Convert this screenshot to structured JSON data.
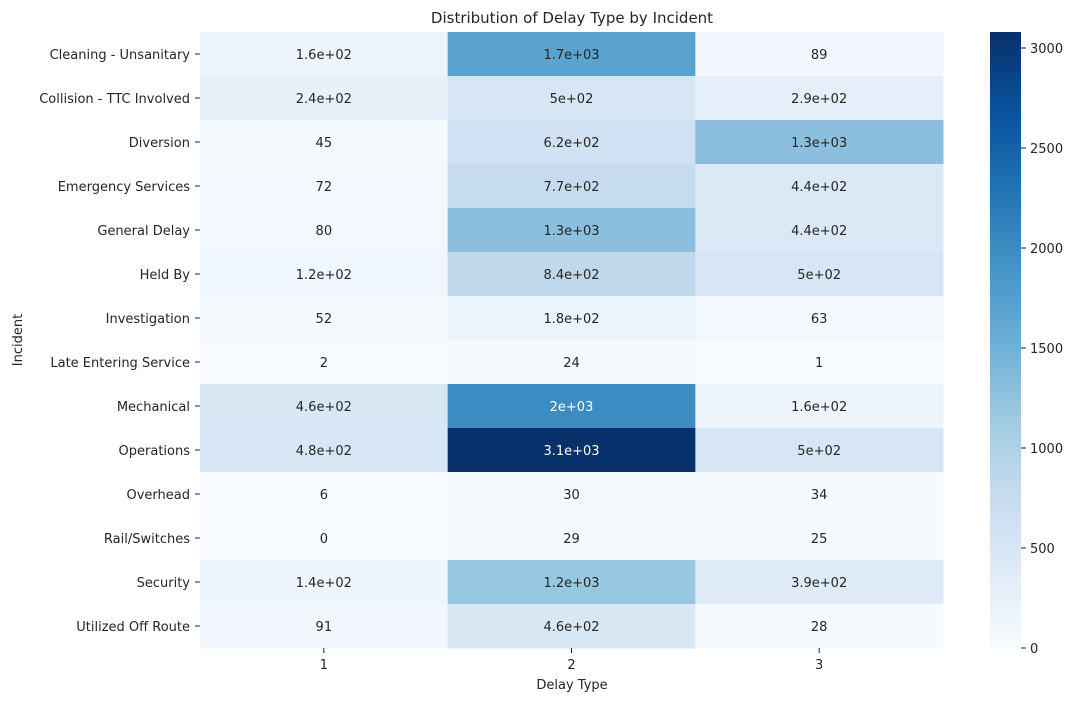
{
  "chart_data": {
    "type": "heatmap",
    "title": "Distribution of Delay Type by Incident",
    "xlabel": "Delay Type",
    "ylabel": "Incident",
    "x_categories": [
      "1",
      "2",
      "3"
    ],
    "y_categories": [
      "Cleaning - Unsanitary",
      "Collision - TTC Involved",
      "Diversion",
      "Emergency Services",
      "General Delay",
      "Held By",
      "Investigation",
      "Late Entering Service",
      "Mechanical",
      "Operations",
      "Overhead",
      "Rail/Switches",
      "Security",
      "Utilized Off Route"
    ],
    "values": [
      [
        160,
        1700,
        89
      ],
      [
        240,
        500,
        290
      ],
      [
        45,
        620,
        1300
      ],
      [
        72,
        770,
        440
      ],
      [
        80,
        1300,
        440
      ],
      [
        120,
        840,
        500
      ],
      [
        52,
        180,
        63
      ],
      [
        2,
        24,
        1
      ],
      [
        460,
        2000,
        160
      ],
      [
        480,
        3100,
        500
      ],
      [
        6,
        30,
        34
      ],
      [
        0,
        29,
        25
      ],
      [
        140,
        1200,
        390
      ],
      [
        91,
        460,
        28
      ]
    ],
    "annotations": [
      [
        "1.6e+02",
        "1.7e+03",
        "89"
      ],
      [
        "2.4e+02",
        "5e+02",
        "2.9e+02"
      ],
      [
        "45",
        "6.2e+02",
        "1.3e+03"
      ],
      [
        "72",
        "7.7e+02",
        "4.4e+02"
      ],
      [
        "80",
        "1.3e+03",
        "4.4e+02"
      ],
      [
        "1.2e+02",
        "8.4e+02",
        "5e+02"
      ],
      [
        "52",
        "1.8e+02",
        "63"
      ],
      [
        "2",
        "24",
        "1"
      ],
      [
        "4.6e+02",
        "2e+03",
        "1.6e+02"
      ],
      [
        "4.8e+02",
        "3.1e+03",
        "5e+02"
      ],
      [
        "6",
        "30",
        "34"
      ],
      [
        "0",
        "29",
        "25"
      ],
      [
        "1.4e+02",
        "1.2e+03",
        "3.9e+02"
      ],
      [
        "91",
        "4.6e+02",
        "28"
      ]
    ],
    "colormap": "Blues",
    "vmin": 0,
    "vmax": 3080,
    "colorbar_ticks": [
      0,
      500,
      1000,
      1500,
      2000,
      2500,
      3000
    ],
    "colorbar_tick_labels": [
      "0",
      "500",
      "1000",
      "1500",
      "2000",
      "2500",
      "3000"
    ]
  }
}
